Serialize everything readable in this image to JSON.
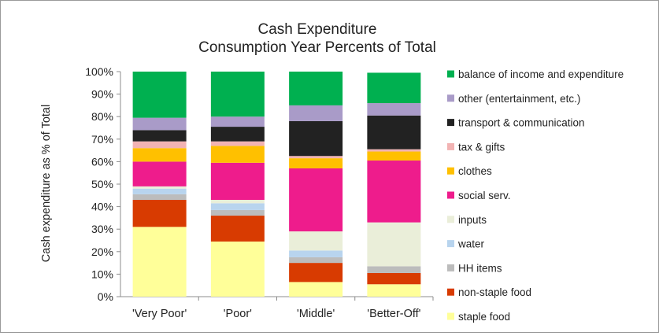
{
  "chart_data": {
    "type": "bar",
    "stacked": true,
    "title": [
      "Cash Expenditure",
      "Consumption Year Percents of Total"
    ],
    "ylabel": "Cash expenditure as % of Total",
    "xlabel": "",
    "ylim": [
      0,
      100
    ],
    "yticks": [
      "0%",
      "10%",
      "20%",
      "30%",
      "40%",
      "50%",
      "60%",
      "70%",
      "80%",
      "90%",
      "100%"
    ],
    "categories": [
      "'Very Poor'",
      "'Poor'",
      "'Middle'",
      "'Better-Off'"
    ],
    "grid": false,
    "legend_position": "right",
    "series": [
      {
        "name": "staple food",
        "color": "#ffff99",
        "values": [
          31,
          24.5,
          6.5,
          5.5
        ]
      },
      {
        "name": "non-staple food",
        "color": "#d83b01",
        "values": [
          12,
          11.5,
          8.5,
          5
        ]
      },
      {
        "name": "HH items",
        "color": "#bcbcbc",
        "values": [
          2.5,
          2.5,
          2.5,
          3
        ]
      },
      {
        "name": "water",
        "color": "#b8d4ee",
        "values": [
          2.5,
          3,
          3,
          0
        ]
      },
      {
        "name": "inputs",
        "color": "#eaeed9",
        "values": [
          1,
          1.5,
          8.5,
          19.5
        ]
      },
      {
        "name": "social serv.",
        "color": "#ee1c8c",
        "values": [
          11,
          16.5,
          28,
          27.5
        ]
      },
      {
        "name": "clothes",
        "color": "#ffc000",
        "values": [
          6,
          7.5,
          4.5,
          4
        ]
      },
      {
        "name": "tax & gifts",
        "color": "#f2b3b3",
        "values": [
          3,
          2,
          1,
          1
        ]
      },
      {
        "name": "transport & communication",
        "color": "#222222",
        "values": [
          5,
          6.5,
          15.5,
          15
        ]
      },
      {
        "name": "other (entertainment, etc.)",
        "color": "#a99bc8",
        "values": [
          5.5,
          4.5,
          7,
          5.5
        ]
      },
      {
        "name": "balance of income and expenditure",
        "color": "#00b050",
        "values": [
          20.5,
          20,
          15,
          13.5
        ]
      }
    ]
  }
}
